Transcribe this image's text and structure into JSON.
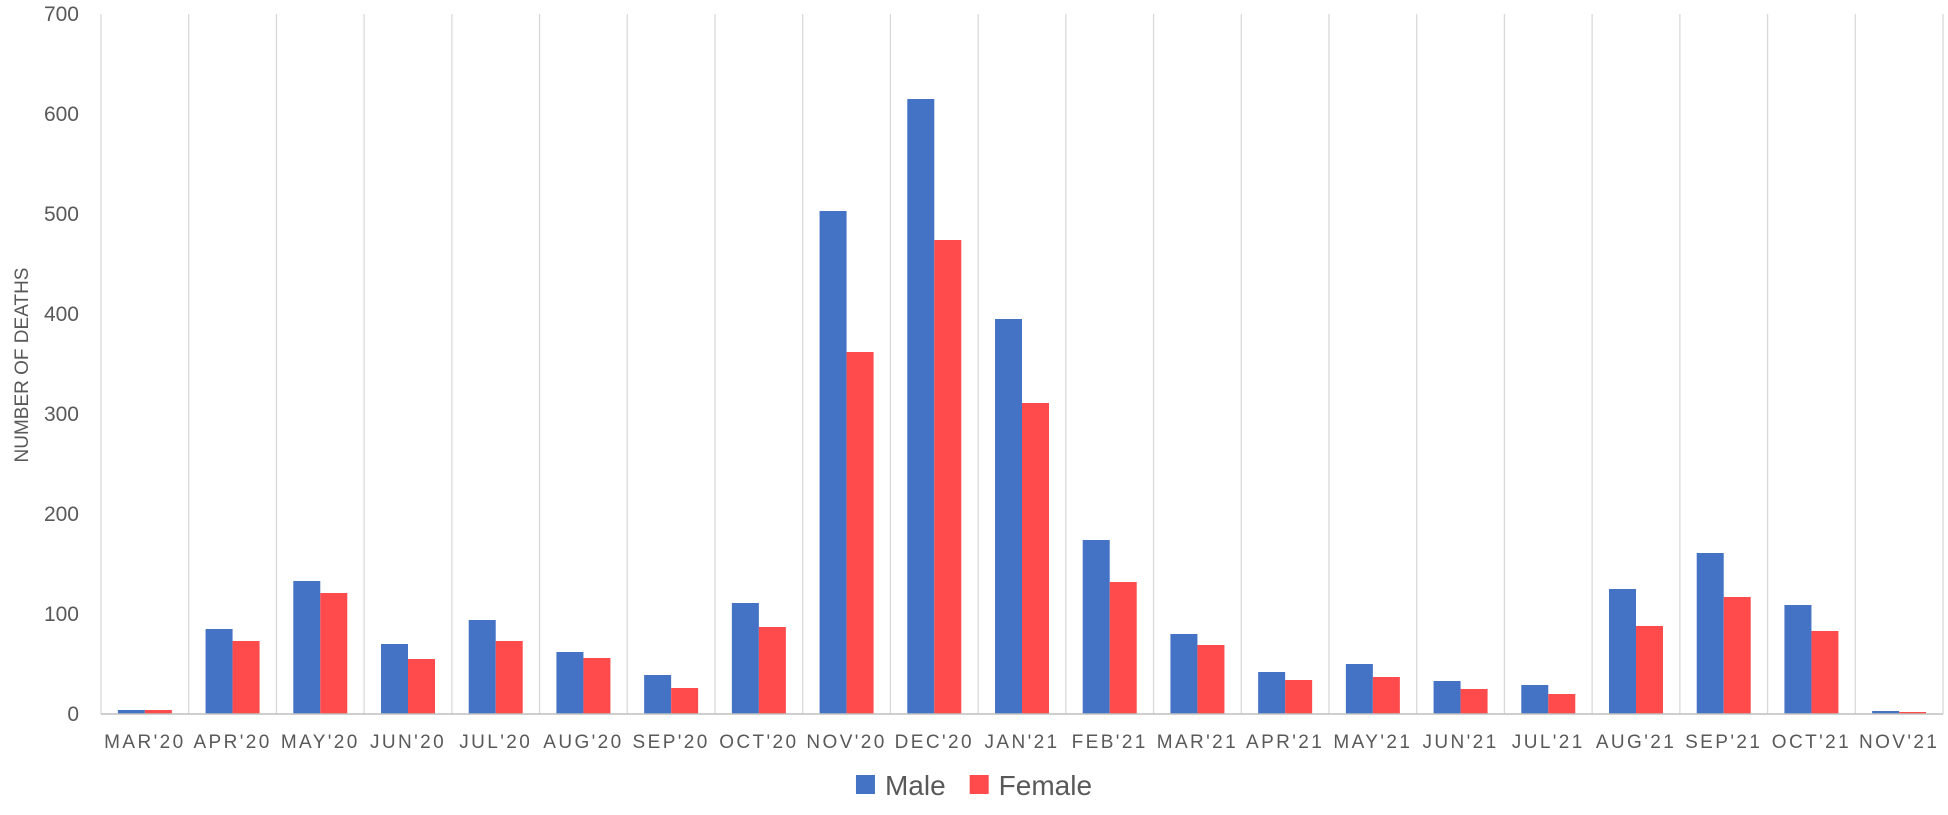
{
  "chart_data": {
    "type": "bar",
    "title": "",
    "xlabel": "",
    "ylabel": "NUMBER OF DEATHS",
    "ylim": [
      0,
      700
    ],
    "yticks": [
      0,
      100,
      200,
      300,
      400,
      500,
      600,
      700
    ],
    "grid": "vertical category separators",
    "legend": "bottom-center",
    "categories": [
      "MAR'20",
      "APR'20",
      "MAY'20",
      "JUN'20",
      "JUL'20",
      "AUG'20",
      "SEP'20",
      "OCT'20",
      "NOV'20",
      "DEC'20",
      "JAN'21",
      "FEB'21",
      "MAR'21",
      "APR'21",
      "MAY'21",
      "JUN'21",
      "JUL'21",
      "AUG'21",
      "SEP'21",
      "OCT'21",
      "NOV'21"
    ],
    "series": [
      {
        "name": "Male",
        "color": "#4472c4",
        "values": [
          4,
          85,
          133,
          70,
          94,
          62,
          39,
          111,
          503,
          615,
          395,
          174,
          80,
          42,
          50,
          33,
          29,
          125,
          161,
          109,
          3
        ]
      },
      {
        "name": "Female",
        "color": "#ff4b4b",
        "values": [
          4,
          73,
          121,
          55,
          73,
          56,
          26,
          87,
          362,
          474,
          311,
          132,
          69,
          34,
          37,
          25,
          20,
          88,
          117,
          83,
          2
        ]
      }
    ]
  }
}
